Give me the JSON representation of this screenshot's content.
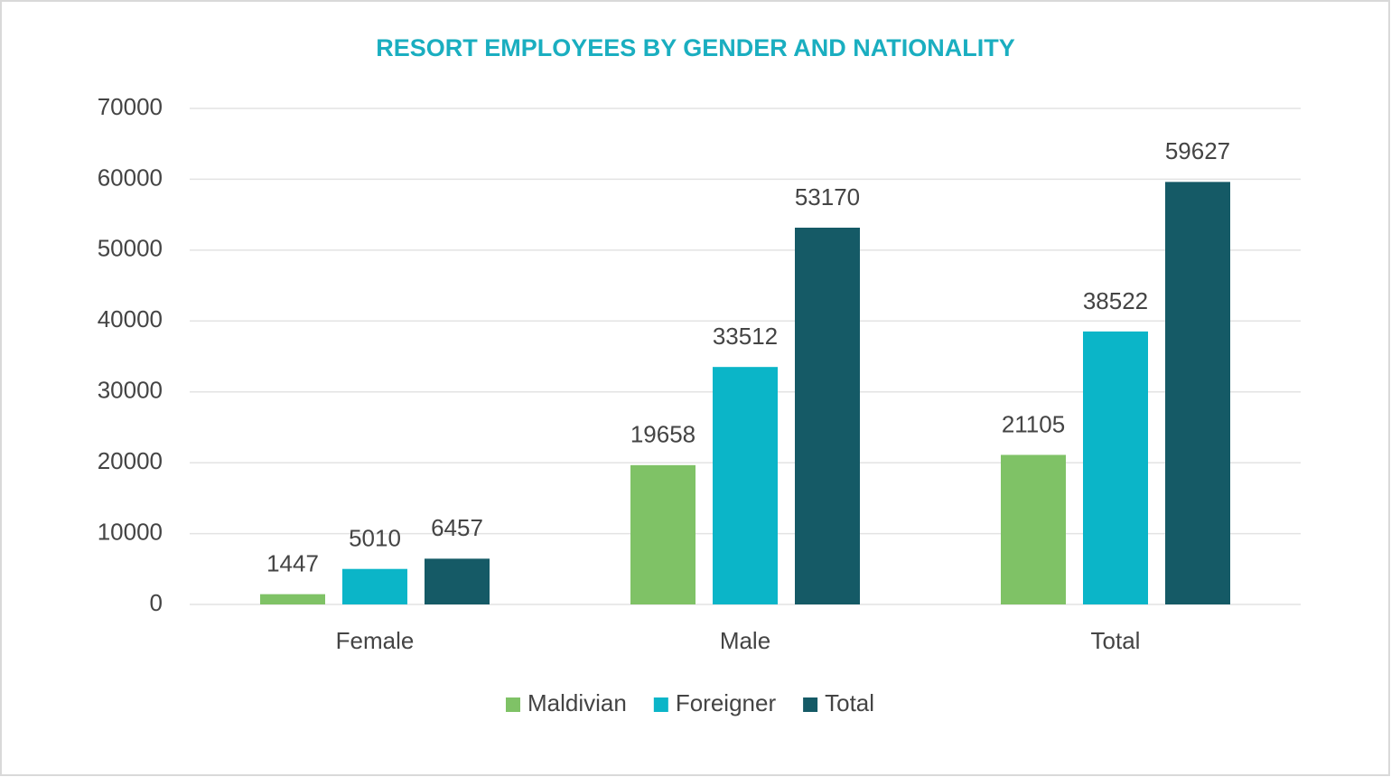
{
  "chart_data": {
    "type": "bar",
    "title": "RESORT EMPLOYEES BY GENDER AND NATIONALITY",
    "categories": [
      "Female",
      "Male",
      "Total"
    ],
    "series": [
      {
        "name": "Maldivian",
        "color": "#7fc266",
        "values": [
          1447,
          19658,
          21105
        ]
      },
      {
        "name": "Foreigner",
        "color": "#0bb5c8",
        "values": [
          5010,
          33512,
          38522
        ]
      },
      {
        "name": "Total",
        "color": "#155a66",
        "values": [
          6457,
          53170,
          59627
        ]
      }
    ],
    "ylim": [
      0,
      70000
    ],
    "yticks": [
      0,
      10000,
      20000,
      30000,
      40000,
      50000,
      60000,
      70000
    ],
    "grid": true,
    "legend": "bottom"
  }
}
